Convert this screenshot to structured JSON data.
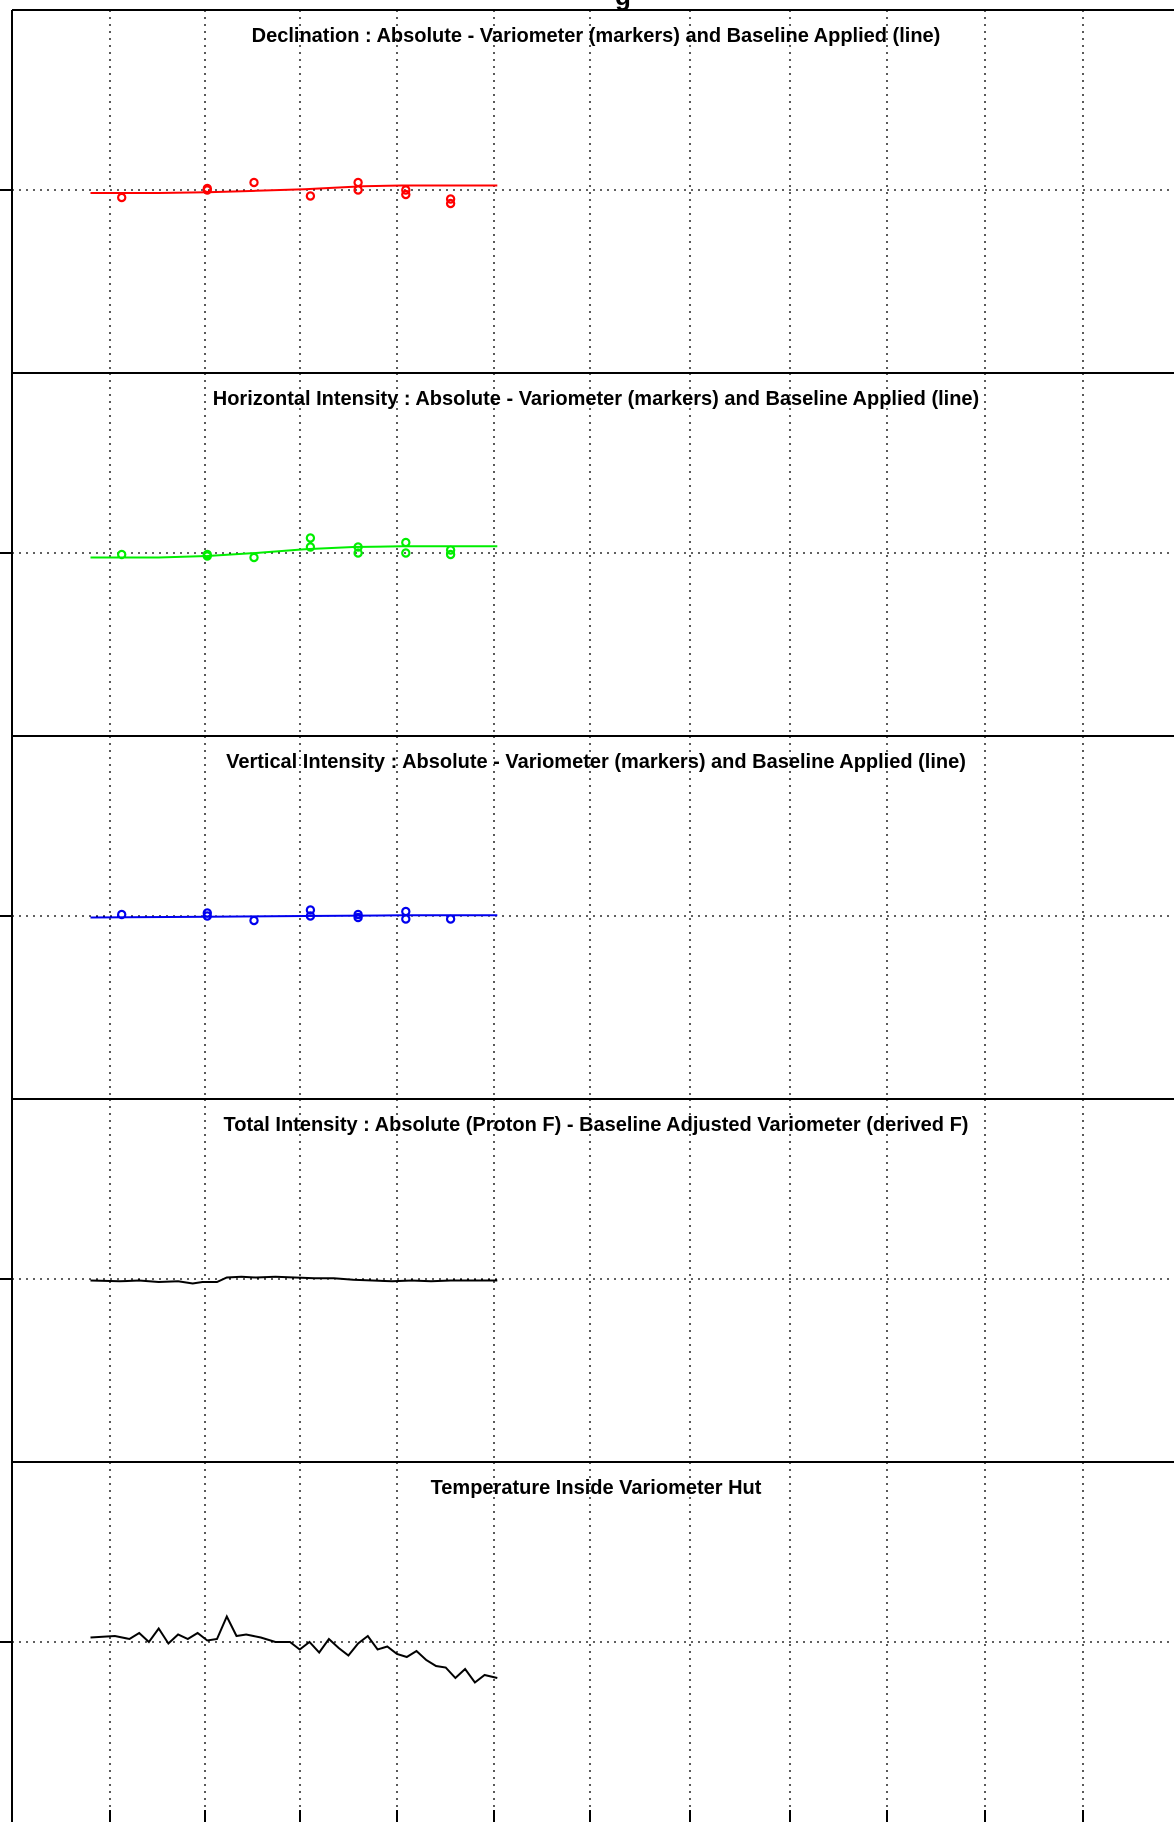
{
  "figure": {
    "header_fragment": "g"
  },
  "colors": {
    "frame": "#000000",
    "grid": "#000000",
    "background": "#ffffff"
  },
  "chart_data": [
    {
      "type": "scatter",
      "title": "Declination : Absolute - Variometer (markers) and Baseline Applied (line)",
      "xlabel": "",
      "ylabel": "",
      "x_tick_count": 12,
      "y_tick_count": 3,
      "grid": true,
      "color": "#ff0000",
      "ylim": [
        -1,
        1
      ],
      "series": [
        {
          "kind": "markers",
          "points": [
            {
              "x": 0.12,
              "y": -0.05
            },
            {
              "x": 1.0,
              "y": 0.0
            },
            {
              "x": 1.0,
              "y": 0.01
            },
            {
              "x": 1.48,
              "y": 0.05
            },
            {
              "x": 2.06,
              "y": -0.04
            },
            {
              "x": 2.55,
              "y": 0.05
            },
            {
              "x": 2.55,
              "y": 0.0
            },
            {
              "x": 3.04,
              "y": 0.0
            },
            {
              "x": 3.04,
              "y": -0.03
            },
            {
              "x": 3.5,
              "y": -0.06
            },
            {
              "x": 3.5,
              "y": -0.09
            }
          ]
        },
        {
          "kind": "line",
          "points": [
            {
              "x": -0.2,
              "y": -0.02
            },
            {
              "x": 0.5,
              "y": -0.02
            },
            {
              "x": 1.0,
              "y": -0.015
            },
            {
              "x": 1.5,
              "y": -0.005
            },
            {
              "x": 2.0,
              "y": 0.005
            },
            {
              "x": 2.3,
              "y": 0.015
            },
            {
              "x": 2.6,
              "y": 0.025
            },
            {
              "x": 3.0,
              "y": 0.03
            },
            {
              "x": 3.4,
              "y": 0.03
            },
            {
              "x": 3.98,
              "y": 0.03
            }
          ]
        }
      ]
    },
    {
      "type": "scatter",
      "title": "Horizontal Intensity : Absolute - Variometer (markers) and Baseline Applied (line)",
      "xlabel": "",
      "ylabel": "",
      "x_tick_count": 12,
      "y_tick_count": 3,
      "grid": true,
      "color": "#00ee00",
      "ylim": [
        -1,
        1
      ],
      "series": [
        {
          "kind": "markers",
          "points": [
            {
              "x": 0.12,
              "y": -0.01
            },
            {
              "x": 1.0,
              "y": -0.01
            },
            {
              "x": 1.0,
              "y": -0.02
            },
            {
              "x": 1.48,
              "y": -0.03
            },
            {
              "x": 2.06,
              "y": 0.1
            },
            {
              "x": 2.06,
              "y": 0.04
            },
            {
              "x": 2.55,
              "y": 0.04
            },
            {
              "x": 2.55,
              "y": 0.0
            },
            {
              "x": 3.04,
              "y": 0.07
            },
            {
              "x": 3.04,
              "y": 0.0
            },
            {
              "x": 3.5,
              "y": 0.02
            },
            {
              "x": 3.5,
              "y": -0.01
            }
          ]
        },
        {
          "kind": "line",
          "points": [
            {
              "x": -0.2,
              "y": -0.03
            },
            {
              "x": 0.5,
              "y": -0.03
            },
            {
              "x": 1.0,
              "y": -0.02
            },
            {
              "x": 1.5,
              "y": 0.0
            },
            {
              "x": 2.0,
              "y": 0.025
            },
            {
              "x": 2.5,
              "y": 0.04
            },
            {
              "x": 3.0,
              "y": 0.045
            },
            {
              "x": 3.98,
              "y": 0.045
            }
          ]
        }
      ]
    },
    {
      "type": "scatter",
      "title": "Vertical Intensity : Absolute - Variometer (markers) and Baseline Applied (line)",
      "xlabel": "",
      "ylabel": "",
      "x_tick_count": 12,
      "y_tick_count": 3,
      "grid": true,
      "color": "#0000ee",
      "ylim": [
        -1,
        1
      ],
      "series": [
        {
          "kind": "markers",
          "points": [
            {
              "x": 0.12,
              "y": 0.01
            },
            {
              "x": 1.0,
              "y": 0.02
            },
            {
              "x": 1.0,
              "y": 0.0
            },
            {
              "x": 1.48,
              "y": -0.03
            },
            {
              "x": 2.06,
              "y": 0.04
            },
            {
              "x": 2.06,
              "y": 0.0
            },
            {
              "x": 2.55,
              "y": 0.01
            },
            {
              "x": 2.55,
              "y": -0.01
            },
            {
              "x": 3.04,
              "y": 0.03
            },
            {
              "x": 3.04,
              "y": -0.02
            },
            {
              "x": 3.5,
              "y": -0.02
            }
          ]
        },
        {
          "kind": "line",
          "points": [
            {
              "x": -0.2,
              "y": -0.01
            },
            {
              "x": 1.0,
              "y": -0.005
            },
            {
              "x": 2.0,
              "y": 0.0
            },
            {
              "x": 3.0,
              "y": 0.005
            },
            {
              "x": 3.98,
              "y": 0.005
            }
          ]
        }
      ]
    },
    {
      "type": "line",
      "title": "Total Intensity : Absolute (Proton F) - Baseline Adjusted Variometer (derived F)",
      "xlabel": "",
      "ylabel": "",
      "x_tick_count": 12,
      "y_tick_count": 3,
      "grid": true,
      "color": "#000000",
      "ylim": [
        -1,
        1
      ],
      "series": [
        {
          "kind": "line",
          "points": [
            {
              "x": -0.2,
              "y": -0.01
            },
            {
              "x": 0.1,
              "y": -0.015
            },
            {
              "x": 0.3,
              "y": -0.01
            },
            {
              "x": 0.5,
              "y": -0.02
            },
            {
              "x": 0.7,
              "y": -0.015
            },
            {
              "x": 0.85,
              "y": -0.03
            },
            {
              "x": 0.95,
              "y": -0.02
            },
            {
              "x": 1.1,
              "y": -0.02
            },
            {
              "x": 1.2,
              "y": 0.01
            },
            {
              "x": 1.35,
              "y": 0.015
            },
            {
              "x": 1.5,
              "y": 0.01
            },
            {
              "x": 1.7,
              "y": 0.015
            },
            {
              "x": 1.9,
              "y": 0.01
            },
            {
              "x": 2.1,
              "y": 0.005
            },
            {
              "x": 2.3,
              "y": 0.005
            },
            {
              "x": 2.5,
              "y": -0.005
            },
            {
              "x": 2.7,
              "y": -0.01
            },
            {
              "x": 2.9,
              "y": -0.015
            },
            {
              "x": 3.1,
              "y": -0.01
            },
            {
              "x": 3.3,
              "y": -0.015
            },
            {
              "x": 3.5,
              "y": -0.01
            },
            {
              "x": 3.7,
              "y": -0.01
            },
            {
              "x": 3.98,
              "y": -0.01
            }
          ]
        }
      ]
    },
    {
      "type": "line",
      "title": "Temperature Inside Variometer Hut",
      "xlabel": "",
      "ylabel": "",
      "x_tick_count": 12,
      "y_tick_count": 3,
      "grid": true,
      "color": "#000000",
      "ylim": [
        -1,
        1
      ],
      "series": [
        {
          "kind": "line",
          "points": [
            {
              "x": -0.2,
              "y": 0.03
            },
            {
              "x": 0.05,
              "y": 0.04
            },
            {
              "x": 0.2,
              "y": 0.02
            },
            {
              "x": 0.3,
              "y": 0.06
            },
            {
              "x": 0.4,
              "y": 0.0
            },
            {
              "x": 0.5,
              "y": 0.09
            },
            {
              "x": 0.6,
              "y": -0.01
            },
            {
              "x": 0.7,
              "y": 0.05
            },
            {
              "x": 0.8,
              "y": 0.02
            },
            {
              "x": 0.9,
              "y": 0.06
            },
            {
              "x": 1.0,
              "y": 0.01
            },
            {
              "x": 1.1,
              "y": 0.02
            },
            {
              "x": 1.2,
              "y": 0.17
            },
            {
              "x": 1.3,
              "y": 0.04
            },
            {
              "x": 1.4,
              "y": 0.05
            },
            {
              "x": 1.55,
              "y": 0.03
            },
            {
              "x": 1.7,
              "y": 0.0
            },
            {
              "x": 1.85,
              "y": 0.0
            },
            {
              "x": 1.95,
              "y": -0.05
            },
            {
              "x": 2.05,
              "y": 0.0
            },
            {
              "x": 2.15,
              "y": -0.07
            },
            {
              "x": 2.25,
              "y": 0.02
            },
            {
              "x": 2.35,
              "y": -0.04
            },
            {
              "x": 2.45,
              "y": -0.09
            },
            {
              "x": 2.55,
              "y": -0.01
            },
            {
              "x": 2.65,
              "y": 0.04
            },
            {
              "x": 2.75,
              "y": -0.05
            },
            {
              "x": 2.85,
              "y": -0.03
            },
            {
              "x": 2.95,
              "y": -0.08
            },
            {
              "x": 3.05,
              "y": -0.1
            },
            {
              "x": 3.15,
              "y": -0.06
            },
            {
              "x": 3.25,
              "y": -0.12
            },
            {
              "x": 3.35,
              "y": -0.16
            },
            {
              "x": 3.45,
              "y": -0.17
            },
            {
              "x": 3.55,
              "y": -0.24
            },
            {
              "x": 3.65,
              "y": -0.18
            },
            {
              "x": 3.75,
              "y": -0.27
            },
            {
              "x": 3.85,
              "y": -0.22
            },
            {
              "x": 3.98,
              "y": -0.24
            }
          ]
        }
      ]
    }
  ]
}
